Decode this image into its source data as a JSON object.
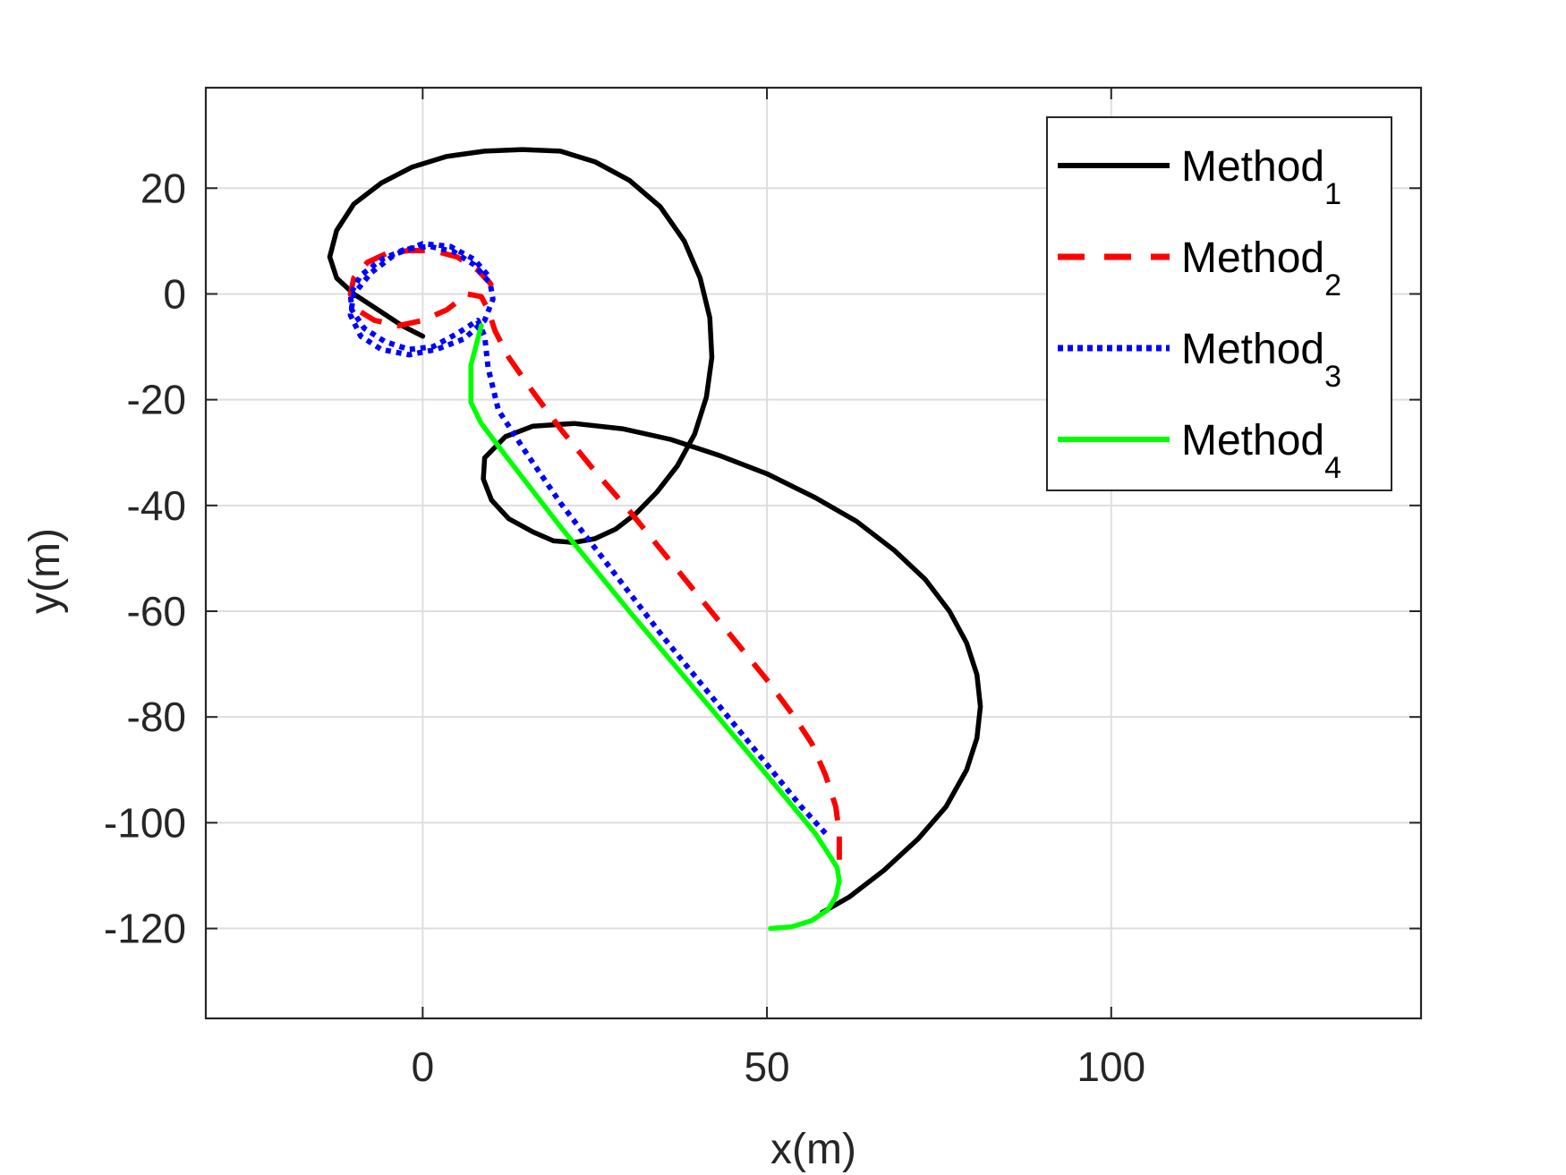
{
  "chart_data": {
    "type": "line",
    "title": "",
    "xlabel": "x(m)",
    "ylabel": "y(m)",
    "xlim": [
      -31.5,
      145
    ],
    "ylim": [
      -137,
      39
    ],
    "xticks": [
      0,
      50,
      100
    ],
    "yticks": [
      20,
      0,
      -20,
      -40,
      -60,
      -80,
      -100,
      -120
    ],
    "xtick_labels": [
      "0",
      "50",
      "100"
    ],
    "ytick_labels": [
      "20",
      "0",
      "-20",
      "-40",
      "-60",
      "-80",
      "-100",
      "-120"
    ],
    "grid": true,
    "legend_position": "top-right",
    "series": [
      {
        "name": "Method",
        "subscript": "1",
        "color": "#000000",
        "style": "solid",
        "x": [
          58,
          62,
          67,
          72,
          76,
          79,
          80.5,
          81,
          80.5,
          79,
          76.5,
          73,
          68.5,
          63,
          57,
          50,
          43,
          36,
          29,
          22,
          16,
          12,
          9,
          8.8,
          10,
          12.5,
          16,
          19,
          22,
          25,
          28,
          31,
          34,
          37,
          39.5,
          41.2,
          42,
          41.7,
          40.3,
          38,
          34.5,
          30,
          25,
          20,
          14.5,
          9,
          3.5,
          -1.5,
          -6,
          -10,
          -12.5,
          -13.5,
          -12.5,
          -10,
          -6.5,
          -3,
          0
        ],
        "y": [
          -117,
          -114,
          -109,
          -103,
          -97,
          -90,
          -84,
          -78,
          -72,
          -66,
          -60,
          -54,
          -48.5,
          -43,
          -38.5,
          -34,
          -30.5,
          -27.5,
          -25.5,
          -24.5,
          -25,
          -27,
          -31,
          -35,
          -39,
          -42.5,
          -45,
          -46.7,
          -47,
          -46.3,
          -44.5,
          -41.5,
          -37.5,
          -32.5,
          -26.5,
          -19.5,
          -12,
          -4.5,
          3,
          10,
          16.5,
          21.5,
          25,
          27,
          27.3,
          27,
          26,
          24,
          21,
          17,
          12,
          7,
          3,
          0,
          -3,
          -6,
          -8
        ]
      },
      {
        "name": "Method",
        "subscript": "2",
        "color": "#ff0000",
        "style": "dashed",
        "x": [
          60.5,
          60.5,
          60,
          58.5,
          56.5,
          54,
          50,
          45,
          40,
          35,
          30,
          25,
          20,
          16,
          12.5,
          10.5,
          9.5,
          8.5,
          6.5,
          3.5,
          0,
          -3.5,
          -7,
          -9.5,
          -10.5,
          -10,
          -8,
          -5,
          -2,
          1.5,
          5,
          8,
          9.8,
          10.5
        ],
        "y": [
          -107,
          -102,
          -97,
          -91,
          -85,
          -80,
          -73,
          -65,
          -57,
          -49,
          -41,
          -33.5,
          -25.5,
          -18.5,
          -12,
          -7,
          -3,
          -0.5,
          0,
          -3,
          -5,
          -6,
          -5,
          -3,
          0,
          3,
          6,
          7.8,
          8.2,
          8.2,
          7,
          4.5,
          2,
          0
        ]
      },
      {
        "name": "Method",
        "subscript": "3",
        "color": "#0000ff",
        "style": "dotted",
        "x": [
          58.5,
          55,
          50,
          45,
          40,
          35,
          30,
          25,
          20,
          15,
          11,
          9.5,
          9,
          8,
          5,
          1.5,
          -2,
          -5.5,
          -8.5,
          -10.3,
          -10.5,
          -9,
          -6,
          -2.5,
          1,
          4.5,
          7.5,
          9.8,
          10.2,
          9,
          6,
          2,
          -2,
          -6,
          -9,
          -10.5,
          -10,
          -7.5,
          -4,
          0,
          4,
          7.5,
          9.8
        ],
        "y": [
          -102,
          -97,
          -89,
          -81,
          -73,
          -65,
          -56.5,
          -48,
          -39.5,
          -30,
          -22,
          -14,
          -8,
          -5,
          -7.5,
          -10,
          -10.5,
          -9,
          -6.5,
          -3,
          0,
          3.5,
          6.5,
          8.5,
          9,
          8,
          5.5,
          2,
          -1,
          -5,
          -8.5,
          -10.5,
          -11.5,
          -10.5,
          -8,
          -4,
          0,
          4,
          7.5,
          9.5,
          9,
          6.5,
          3
        ]
      },
      {
        "name": "Method",
        "subscript": "4",
        "color": "#00ff00",
        "style": "solid",
        "x": [
          50.5,
          53.5,
          56.5,
          58.8,
          60,
          60.5,
          60.2,
          59,
          57,
          50,
          40,
          30,
          20,
          12,
          8.5,
          7,
          7,
          7.8,
          8.5
        ],
        "y": [
          -120,
          -119.7,
          -118.5,
          -116.5,
          -114,
          -111,
          -108.5,
          -106,
          -102,
          -91,
          -75.5,
          -60,
          -44,
          -30.5,
          -24.5,
          -20.5,
          -13.5,
          -9.5,
          -6
        ]
      }
    ]
  }
}
